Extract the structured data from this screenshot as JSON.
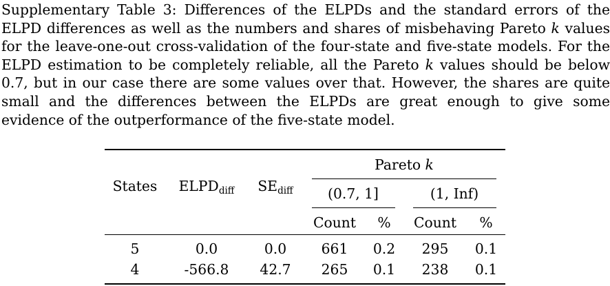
{
  "caption": {
    "label": "Supplementary Table 3:",
    "text_before_k1": " Differences of the ELPDs and the standard errors of the ELPD differences as well as the numbers and shares of misbehaving Pareto ",
    "k1": "k",
    "text_between_k": " values for the leave-one-out cross-validation of the four-state and five-state models. For the ELPD estimation to be completely reliable, all the Pareto ",
    "k2": "k",
    "text_after_k2": " values should be below 0.7, but in our case there are some values over that. However, the shares are quite small and the differences between the ELPDs are great enough to give some evidence of the outperformance of the five-state model."
  },
  "table": {
    "headers": {
      "states": "States",
      "elpd_main": "ELPD",
      "elpd_sub": "diff",
      "se_main": "SE",
      "se_sub": "diff",
      "pareto_main": "Pareto ",
      "pareto_k": "k",
      "range1": "(0.7, 1]",
      "range2": "(1, Inf)",
      "count1": "Count",
      "pct1": "%",
      "count2": "Count",
      "pct2": "%"
    },
    "rows": [
      {
        "states": "5",
        "elpd": "0.0",
        "se": "0.0",
        "count1": "661",
        "pct1": "0.2",
        "count2": "295",
        "pct2": "0.1"
      },
      {
        "states": "4",
        "elpd": "-566.8",
        "se": "42.7",
        "count1": "265",
        "pct1": "0.1",
        "count2": "238",
        "pct2": "0.1"
      }
    ]
  }
}
